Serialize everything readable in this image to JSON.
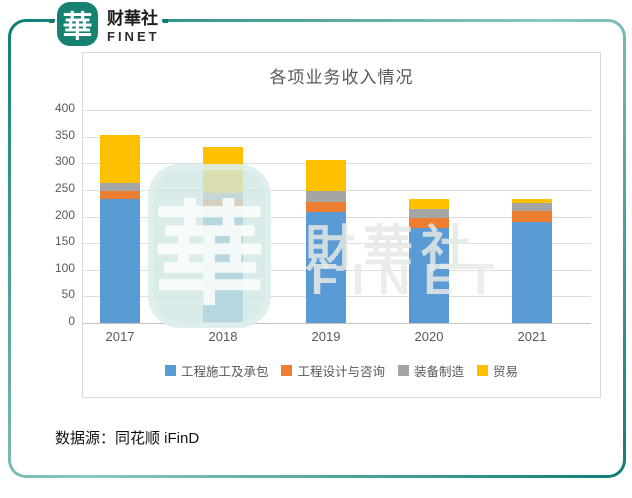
{
  "header": {
    "logo": {
      "seal_char": "華",
      "name_zh": "财華社",
      "name_en": "FINET"
    }
  },
  "chart_data": {
    "type": "bar",
    "stacked": true,
    "title": "各项业务收入情况",
    "categories": [
      "2017",
      "2018",
      "2019",
      "2020",
      "2021"
    ],
    "series": [
      {
        "name": "工程施工及承包",
        "color": "#5B9BD5",
        "values": [
          232,
          212,
          208,
          178,
          189
        ]
      },
      {
        "name": "工程设计与咨询",
        "color": "#ED7D31",
        "values": [
          16,
          19,
          19,
          20,
          22
        ]
      },
      {
        "name": "装备制造",
        "color": "#A5A5A5",
        "values": [
          14,
          14,
          20,
          17,
          15
        ]
      },
      {
        "name": "贸易",
        "color": "#FFC000",
        "values": [
          91,
          85,
          59,
          18,
          6
        ]
      }
    ],
    "totals": [
      353,
      330,
      306,
      233,
      232
    ],
    "xlabel": "",
    "ylabel": "",
    "ylim": [
      0,
      400
    ],
    "yticks": [
      0,
      50,
      100,
      150,
      200,
      250,
      300,
      350,
      400
    ],
    "grid": true,
    "legend_position": "bottom"
  },
  "watermark": {
    "seal_char": "華",
    "text_zh": "財華社",
    "text_en": "FINET"
  },
  "footer": {
    "source": "数据源：同花顺 iFinD"
  },
  "colors": {
    "frame_teal_dark": "#0d7e74",
    "frame_teal_light": "#8cc7c0",
    "logo_seal": "#178172",
    "title_text": "#595959",
    "axis_text": "#595959",
    "gridline": "#dedede",
    "card_border": "#d9d9d9"
  }
}
